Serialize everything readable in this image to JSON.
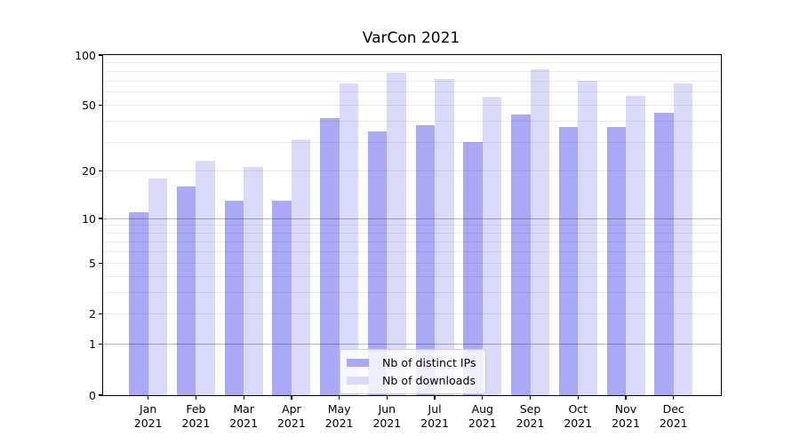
{
  "figure": {
    "title": "VarCon 2021"
  },
  "axes": {
    "y_ticks": [
      0,
      1,
      2,
      5,
      10,
      20,
      50,
      100
    ],
    "y_grid_major": [
      1,
      10
    ],
    "y_grid_minor": [
      2,
      3,
      4,
      5,
      6,
      7,
      8,
      9,
      20,
      30,
      40,
      50,
      60,
      70,
      80,
      90
    ]
  },
  "colors": {
    "grid_minor": "rgba(0,0,0,0.08)",
    "grid_major": "rgba(0,0,0,0.28)",
    "axis": "#000000",
    "legend_bg": "rgba(255,255,255,0.8)",
    "legend_border": "#cccccc"
  },
  "chart_data": {
    "type": "bar",
    "title": "VarCon 2021",
    "categories": [
      "Jan 2021",
      "Feb 2021",
      "Mar 2021",
      "Apr 2021",
      "May 2021",
      "Jun 2021",
      "Jul 2021",
      "Aug 2021",
      "Sep 2021",
      "Oct 2021",
      "Nov 2021",
      "Dec 2021"
    ],
    "series": [
      {
        "name": "Nb of distinct IPs",
        "color": "#a9a9f6",
        "values": [
          11,
          16,
          13,
          13,
          42,
          35,
          38,
          30,
          44,
          37,
          37,
          45
        ]
      },
      {
        "name": "Nb of downloads",
        "color": "#dadafa",
        "values": [
          18,
          23,
          21,
          31,
          68,
          78,
          72,
          56,
          82,
          70,
          57,
          68
        ]
      }
    ],
    "xlabel": "",
    "ylabel": "",
    "yscale": "log1p",
    "ylim": [
      0,
      100
    ],
    "yticks": [
      0,
      1,
      2,
      5,
      10,
      20,
      50,
      100
    ],
    "grid": true,
    "legend_position": "lower center"
  }
}
